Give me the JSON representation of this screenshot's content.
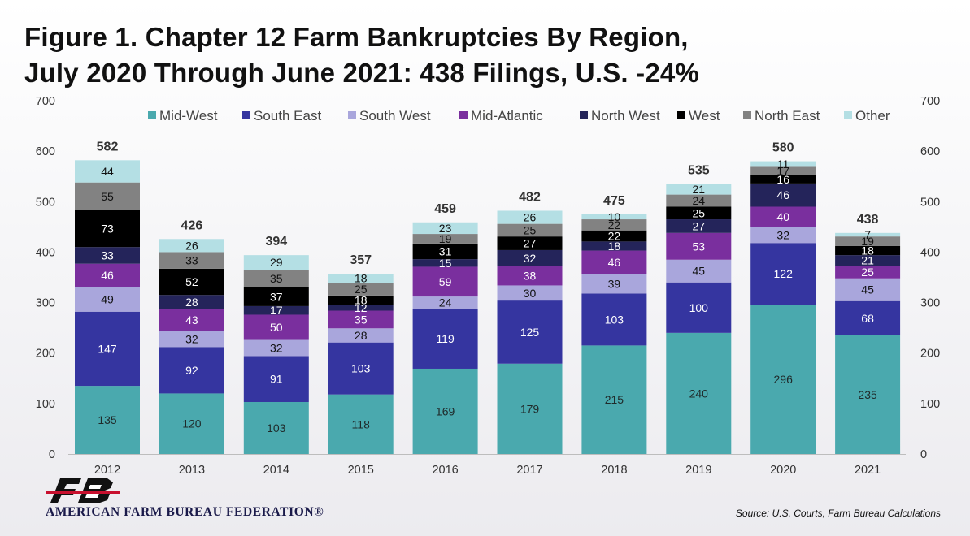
{
  "header": {
    "title_line1": "Figure 1. Chapter 12 Farm Bankruptcies By Region,",
    "title_line2": "July 2020 Through June 2021: 438 Filings, U.S. -24%"
  },
  "footer": {
    "org_name": "AMERICAN FARM BUREAU FEDERATION®",
    "source": "Source: U.S. Courts, Farm Bureau Calculations"
  },
  "chart_data": {
    "type": "bar",
    "stacked": true,
    "title": "Figure 1. Chapter 12 Farm Bankruptcies By Region, July 2020 Through June 2021: 438 Filings, U.S. -24%",
    "xlabel": "",
    "ylabel": "",
    "ylim": [
      0,
      700
    ],
    "yticks": [
      0,
      100,
      200,
      300,
      400,
      500,
      600,
      700
    ],
    "secondary_y_axis": true,
    "grid": false,
    "legend_position": "top",
    "categories": [
      "2012",
      "2013",
      "2014",
      "2015",
      "2016",
      "2017",
      "2018",
      "2019",
      "2020",
      "2021"
    ],
    "totals": [
      582,
      426,
      394,
      357,
      459,
      482,
      475,
      535,
      580,
      438
    ],
    "series": [
      {
        "name": "Mid-West",
        "color": "#4aa9ae",
        "label_color": "#1f2a2a",
        "values": [
          135,
          120,
          103,
          118,
          169,
          179,
          215,
          240,
          296,
          235
        ]
      },
      {
        "name": "South East",
        "color": "#3535a0",
        "label_color": "#ffffff",
        "values": [
          147,
          92,
          91,
          103,
          119,
          125,
          103,
          100,
          122,
          68
        ]
      },
      {
        "name": "South West",
        "color": "#a9a6dc",
        "label_color": "#111111",
        "values": [
          49,
          32,
          32,
          28,
          24,
          30,
          39,
          45,
          32,
          45
        ]
      },
      {
        "name": "Mid-Atlantic",
        "color": "#7a2f9e",
        "label_color": "#ffffff",
        "values": [
          46,
          43,
          50,
          35,
          59,
          38,
          46,
          53,
          40,
          25
        ]
      },
      {
        "name": "North West",
        "color": "#24245a",
        "label_color": "#ffffff",
        "values": [
          33,
          28,
          17,
          12,
          15,
          32,
          18,
          27,
          46,
          21
        ]
      },
      {
        "name": "West",
        "color": "#000000",
        "label_color": "#ffffff",
        "values": [
          73,
          52,
          37,
          18,
          31,
          27,
          22,
          25,
          16,
          18
        ]
      },
      {
        "name": "North East",
        "color": "#828282",
        "label_color": "#111111",
        "values": [
          55,
          33,
          35,
          25,
          19,
          25,
          22,
          24,
          17,
          19
        ]
      },
      {
        "name": "Other",
        "color": "#b4dfe4",
        "label_color": "#111111",
        "values": [
          44,
          26,
          29,
          18,
          23,
          26,
          10,
          21,
          11,
          7
        ]
      }
    ]
  }
}
